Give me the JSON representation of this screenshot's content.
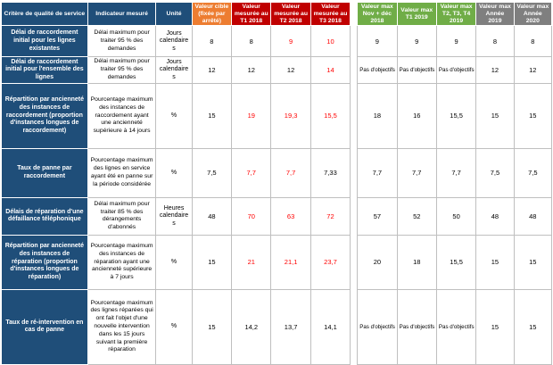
{
  "colors": {
    "header_blue": "#1f4e79",
    "header_orange": "#ed7d31",
    "header_red": "#c00000",
    "header_green": "#70ad47",
    "header_gray": "#7f7f7f",
    "alert_value_red": "#ff0000"
  },
  "headers": {
    "criterion": "Critère de qualité de service",
    "indicator": "Indicateur mesuré",
    "unit": "Unité",
    "target": "Valeur cible (fixée par arrêté)",
    "measured": [
      "Valeur mesurée au T1 2018",
      "Valeur mesurée au T2 2018",
      "Valeur mesurée au T3 2018"
    ],
    "max_green": [
      "Valeur max Nov + déc 2018",
      "Valeur max T1 2019",
      "Valeur max T2, T3, T4 2019"
    ],
    "max_gray": [
      "Valeur max Année 2019",
      "Valeur max Année 2020"
    ]
  },
  "rows": [
    {
      "criterion": "Délai de raccordement initial pour les lignes existantes",
      "indicator": "Délai maximum pour traiter 95 % des demandes",
      "unit": "Jours calendaires",
      "target": "8",
      "measured": [
        {
          "value": "8",
          "alert": false
        },
        {
          "value": "9",
          "alert": true
        },
        {
          "value": "10",
          "alert": true
        }
      ],
      "max_green": [
        "9",
        "9",
        "9"
      ],
      "max_gray": [
        "8",
        "8"
      ]
    },
    {
      "criterion": "Délai de raccordement initial pour l'ensemble des lignes",
      "indicator": "Délai maximum pour traiter 95 % des demandes",
      "unit": "Jours calendaires",
      "target": "12",
      "measured": [
        {
          "value": "12",
          "alert": false
        },
        {
          "value": "12",
          "alert": false
        },
        {
          "value": "14",
          "alert": true
        }
      ],
      "max_green": [
        "Pas d'objectifs",
        "Pas d'objectifs",
        "Pas d'objectifs"
      ],
      "max_gray": [
        "12",
        "12"
      ]
    },
    {
      "criterion": "Répartition par ancienneté des instances de raccordement (proportion d'instances longues de raccordement)",
      "indicator": "Pourcentage maximum des instances de raccordement ayant une ancienneté supérieure à 14 jours",
      "unit": "%",
      "target": "15",
      "measured": [
        {
          "value": "19",
          "alert": true
        },
        {
          "value": "19,3",
          "alert": true
        },
        {
          "value": "15,5",
          "alert": true
        }
      ],
      "max_green": [
        "18",
        "16",
        "15,5"
      ],
      "max_gray": [
        "15",
        "15"
      ]
    },
    {
      "criterion": "Taux de panne par raccordement",
      "indicator": "Pourcentage maximum des lignes en service ayant été en panne sur la période considérée",
      "unit": "%",
      "target": "7,5",
      "measured": [
        {
          "value": "7,7",
          "alert": true
        },
        {
          "value": "7,7",
          "alert": true
        },
        {
          "value": "7,33",
          "alert": false
        }
      ],
      "max_green": [
        "7,7",
        "7,7",
        "7,7"
      ],
      "max_gray": [
        "7,5",
        "7,5"
      ]
    },
    {
      "criterion": "Délais de réparation d'une défaillance téléphonique",
      "indicator": "Délai maximum pour traiter 85 % des dérangements d'abonnés",
      "unit": "Heures calendaires",
      "target": "48",
      "measured": [
        {
          "value": "70",
          "alert": true
        },
        {
          "value": "63",
          "alert": true
        },
        {
          "value": "72",
          "alert": true
        }
      ],
      "max_green": [
        "57",
        "52",
        "50"
      ],
      "max_gray": [
        "48",
        "48"
      ]
    },
    {
      "criterion": "Répartition par ancienneté des instances de réparation (proportion d'instances longues de réparation)",
      "indicator": "Pourcentage maximum des instances de réparation ayant une ancienneté supérieure à 7 jours",
      "unit": "%",
      "target": "15",
      "measured": [
        {
          "value": "21",
          "alert": true
        },
        {
          "value": "21,1",
          "alert": true
        },
        {
          "value": "23,7",
          "alert": true
        }
      ],
      "max_green": [
        "20",
        "18",
        "15,5"
      ],
      "max_gray": [
        "15",
        "15"
      ]
    },
    {
      "criterion": "Taux de ré-intervention en cas de panne",
      "indicator": "Pourcentage maximum des lignes réparées qui ont fait l'objet d'une nouvelle intervention dans les 15 jours suivant la première réparation",
      "unit": "%",
      "target": "15",
      "measured": [
        {
          "value": "14,2",
          "alert": false
        },
        {
          "value": "13,7",
          "alert": false
        },
        {
          "value": "14,1",
          "alert": false
        }
      ],
      "max_green": [
        "Pas d'objectifs",
        "Pas d'objectifs",
        "Pas d'objectifs"
      ],
      "max_gray": [
        "15",
        "15"
      ]
    }
  ]
}
